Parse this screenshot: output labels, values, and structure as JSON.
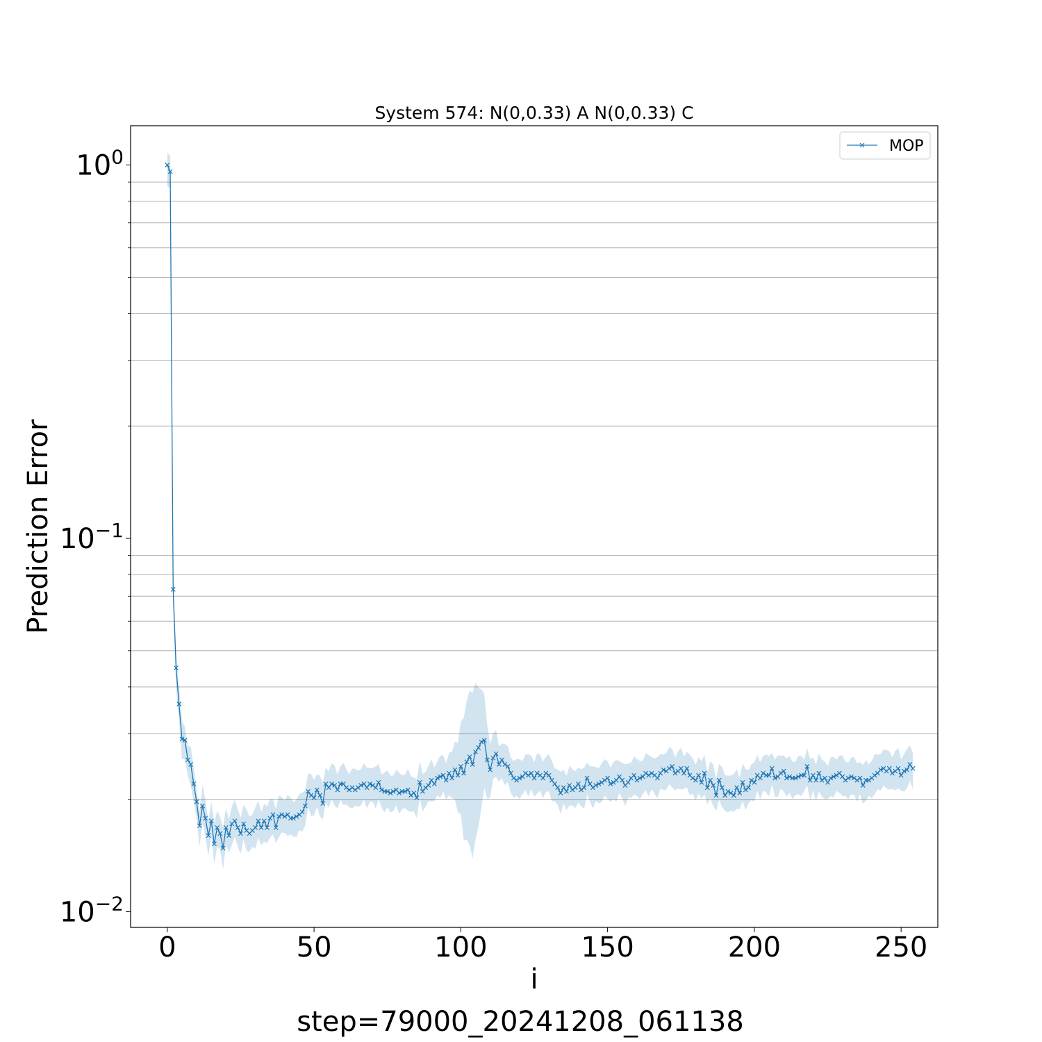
{
  "chart_data": {
    "type": "line",
    "title": "System 574: N(0,0.33) A N(0,0.33) C",
    "xlabel": "i",
    "ylabel": "Prediction Error",
    "footer": "step=79000_20241208_061138",
    "xlim": [
      -12.5,
      262.5
    ],
    "ylim": [
      0.00908,
      1.274
    ],
    "yscale": "log",
    "grid": "y-minor",
    "legend_position": "upper right",
    "x_ticks": [
      0,
      50,
      100,
      150,
      200,
      250
    ],
    "y_ticks": [
      {
        "value": 1.0,
        "base": "10",
        "exp": "0"
      },
      {
        "value": 0.1,
        "base": "10",
        "exp": "−1"
      },
      {
        "value": 0.01,
        "base": "10",
        "exp": "−2"
      }
    ],
    "series": [
      {
        "name": "MOP",
        "color": "#1f77b4",
        "marker": "x",
        "band_color": "#1f77b4",
        "values": [
          1.0,
          0.96,
          0.073,
          0.045,
          0.036,
          0.029,
          0.0288,
          0.0255,
          0.0248,
          0.022,
          0.0197,
          0.017,
          0.0192,
          0.0178,
          0.016,
          0.0175,
          0.0152,
          0.0168,
          0.0162,
          0.0148,
          0.0168,
          0.016,
          0.0172,
          0.0175,
          0.0168,
          0.0162,
          0.0172,
          0.0165,
          0.0162,
          0.0165,
          0.0168,
          0.0175,
          0.0168,
          0.0175,
          0.0168,
          0.0178,
          0.0182,
          0.0168,
          0.018,
          0.0182,
          0.018,
          0.0182,
          0.0178,
          0.0178,
          0.018,
          0.0182,
          0.0185,
          0.0192,
          0.021,
          0.0205,
          0.0202,
          0.0212,
          0.0205,
          0.0195,
          0.022,
          0.0215,
          0.022,
          0.0218,
          0.0212,
          0.022,
          0.022,
          0.0215,
          0.0212,
          0.0215,
          0.0212,
          0.0215,
          0.0218,
          0.022,
          0.0215,
          0.022,
          0.0218,
          0.0215,
          0.0222,
          0.0212,
          0.021,
          0.021,
          0.0208,
          0.021,
          0.0212,
          0.0208,
          0.021,
          0.021,
          0.0212,
          0.0205,
          0.0208,
          0.0202,
          0.0222,
          0.021,
          0.0215,
          0.0218,
          0.0225,
          0.022,
          0.0228,
          0.023,
          0.0232,
          0.0225,
          0.0235,
          0.0228,
          0.024,
          0.0232,
          0.0245,
          0.0235,
          0.0252,
          0.026,
          0.0248,
          0.0268,
          0.0275,
          0.0285,
          0.0288,
          0.0255,
          0.024,
          0.0258,
          0.0265,
          0.0248,
          0.0255,
          0.0248,
          0.0245,
          0.0235,
          0.0228,
          0.0225,
          0.0228,
          0.023,
          0.0235,
          0.0232,
          0.0235,
          0.0228,
          0.0235,
          0.0232,
          0.0228,
          0.0235,
          0.0232,
          0.0225,
          0.022,
          0.0215,
          0.0208,
          0.0215,
          0.021,
          0.0218,
          0.0212,
          0.0215,
          0.022,
          0.0212,
          0.0215,
          0.0228,
          0.022,
          0.0215,
          0.0218,
          0.022,
          0.0222,
          0.0225,
          0.0228,
          0.022,
          0.0222,
          0.0225,
          0.023,
          0.0225,
          0.0218,
          0.0222,
          0.0228,
          0.0232,
          0.0225,
          0.0228,
          0.023,
          0.0235,
          0.0232,
          0.0235,
          0.0232,
          0.0228,
          0.0235,
          0.024,
          0.0238,
          0.0242,
          0.0245,
          0.0235,
          0.0238,
          0.0242,
          0.0235,
          0.0242,
          0.0232,
          0.0228,
          0.0225,
          0.0232,
          0.0222,
          0.0235,
          0.0215,
          0.0225,
          0.0218,
          0.0205,
          0.0225,
          0.0215,
          0.0205,
          0.021,
          0.0208,
          0.0205,
          0.0215,
          0.0208,
          0.0222,
          0.0212,
          0.0215,
          0.0225,
          0.0222,
          0.0232,
          0.0228,
          0.0235,
          0.0232,
          0.0232,
          0.0242,
          0.0228,
          0.023,
          0.0235,
          0.0238,
          0.0228,
          0.023,
          0.0228,
          0.0228,
          0.023,
          0.0232,
          0.0232,
          0.0245,
          0.0225,
          0.0232,
          0.0225,
          0.0235,
          0.0225,
          0.0228,
          0.0222,
          0.0228,
          0.023,
          0.0232,
          0.0235,
          0.023,
          0.0225,
          0.0228,
          0.023,
          0.0228,
          0.0225,
          0.0228,
          0.0218,
          0.0225,
          0.0225,
          0.0228,
          0.0232,
          0.0235,
          0.024,
          0.0242,
          0.0238,
          0.0242,
          0.0235,
          0.0238,
          0.0242,
          0.0232,
          0.0238,
          0.024,
          0.0248,
          0.0242
        ]
      }
    ]
  }
}
